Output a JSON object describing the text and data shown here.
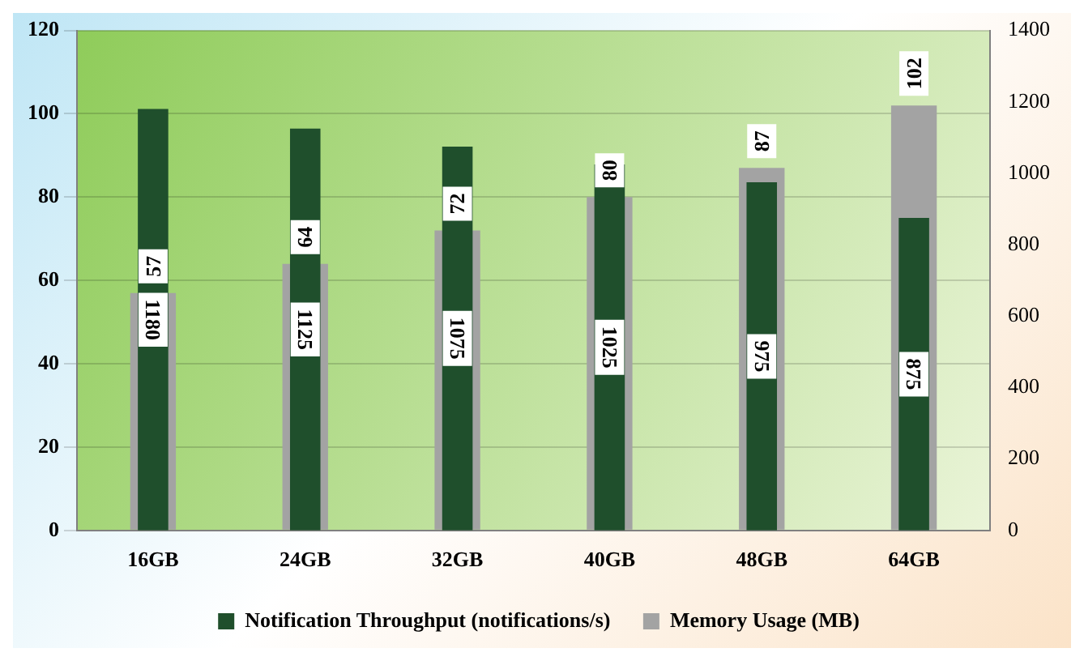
{
  "chart_data": {
    "type": "bar",
    "categories": [
      "16GB",
      "24GB",
      "32GB",
      "40GB",
      "48GB",
      "64GB"
    ],
    "series": [
      {
        "name": "Memory Usage (MB)",
        "color": "#a3a3a3",
        "values": [
          57,
          64,
          72,
          80,
          87,
          102
        ]
      },
      {
        "name": "Notification Throughput (notifications/s)",
        "color": "#1f4f2c",
        "values": [
          1180,
          1125,
          1075,
          1025,
          975,
          875
        ],
        "axis": "y2"
      }
    ],
    "ylim": [
      0,
      120
    ],
    "yticks": [
      0,
      20,
      40,
      60,
      80,
      100,
      120
    ],
    "y2lim": [
      0,
      1400
    ],
    "y2ticks": [
      0,
      200,
      400,
      600,
      800,
      1000,
      1200,
      1400
    ],
    "grid": "y",
    "legend": "bottom",
    "data_labels": true
  }
}
